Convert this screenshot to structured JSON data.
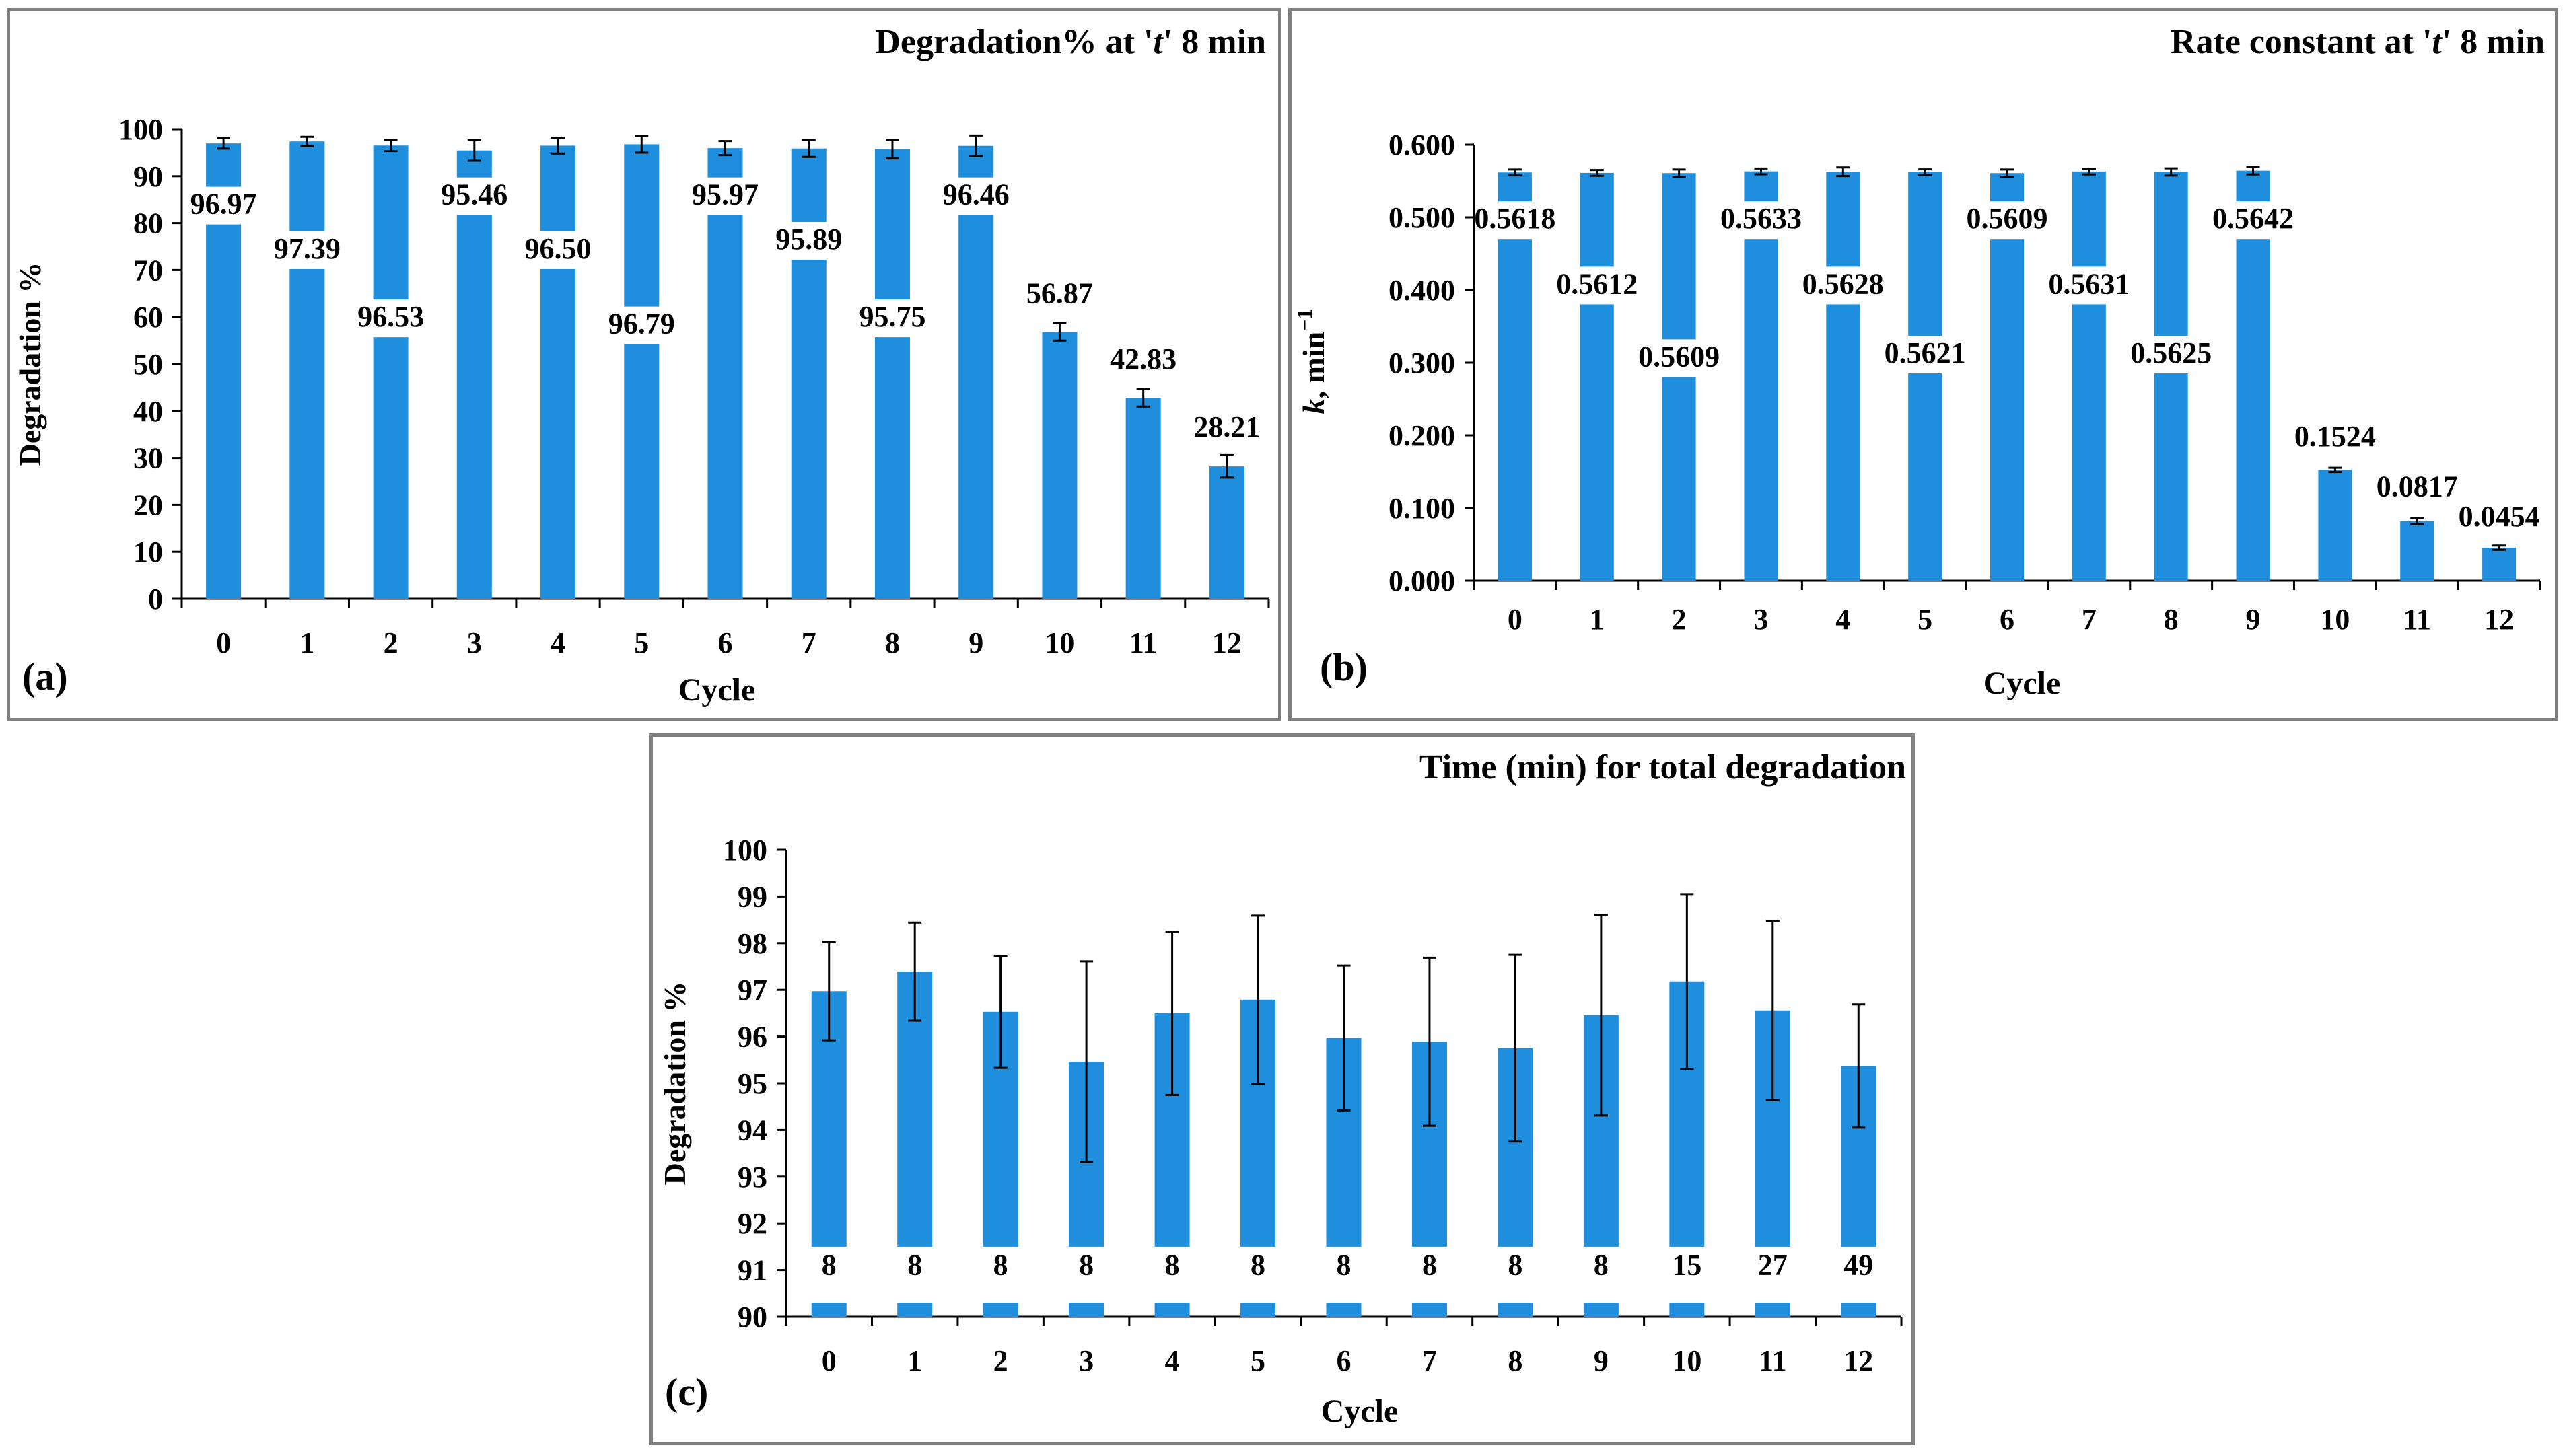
{
  "colors": {
    "bar": "#1f8edc",
    "axis": "#000000",
    "gridline": "none",
    "panel_label": "#ff0000",
    "frame": "#7f7f7f"
  },
  "chart_data": [
    {
      "id": "a",
      "type": "bar",
      "panel_label": "(a)",
      "title": "Degradation% at 't' 8 min",
      "title_parts": [
        "Degradation% at '",
        "t",
        "' 8 min"
      ],
      "xlabel": "Cycle",
      "ylabel": "Degradation %",
      "ylim": [
        0,
        100
      ],
      "yticks": [
        "0",
        "10",
        "20",
        "30",
        "40",
        "50",
        "60",
        "70",
        "80",
        "90",
        "100"
      ],
      "categories": [
        "0",
        "1",
        "2",
        "3",
        "4",
        "5",
        "6",
        "7",
        "8",
        "9",
        "10",
        "11",
        "12"
      ],
      "values": [
        96.97,
        97.39,
        96.53,
        95.46,
        96.5,
        96.79,
        95.97,
        95.89,
        95.75,
        96.46,
        56.87,
        42.83,
        28.21
      ],
      "error": [
        1.1,
        1.0,
        1.2,
        2.2,
        1.7,
        1.8,
        1.5,
        1.8,
        2.0,
        2.2,
        1.9,
        1.9,
        2.4
      ],
      "data_labels": [
        "96.97",
        "97.39",
        "96.53",
        "95.46",
        "96.50",
        "96.79",
        "95.97",
        "95.89",
        "95.75",
        "96.46",
        "56.87",
        "42.83",
        "28.21"
      ],
      "label_positions": [
        82,
        72.5,
        58,
        84,
        72.5,
        56.5,
        84,
        74.5,
        58,
        84,
        63,
        49,
        34.5
      ]
    },
    {
      "id": "b",
      "type": "bar",
      "panel_label": "(b)",
      "title": "Rate constant at 't' 8 min",
      "title_parts": [
        "Rate constant at '",
        "t",
        "' 8 min"
      ],
      "xlabel": "Cycle",
      "ylabel": "k, min⁻¹",
      "ylabel_parts": [
        "k",
        ", min",
        "−1"
      ],
      "ylim": [
        0,
        0.6
      ],
      "yticks": [
        "0.000",
        "0.100",
        "0.200",
        "0.300",
        "0.400",
        "0.500",
        "0.600"
      ],
      "categories": [
        "0",
        "1",
        "2",
        "3",
        "4",
        "5",
        "6",
        "7",
        "8",
        "9",
        "10",
        "11",
        "12"
      ],
      "values": [
        0.5618,
        0.5612,
        0.5609,
        0.5633,
        0.5628,
        0.5621,
        0.5609,
        0.5631,
        0.5625,
        0.5642,
        0.1524,
        0.0817,
        0.0454
      ],
      "error": [
        0.004,
        0.004,
        0.005,
        0.004,
        0.006,
        0.004,
        0.005,
        0.004,
        0.005,
        0.005,
        0.003,
        0.004,
        0.003
      ],
      "data_labels": [
        "0.5618",
        "0.5612",
        "0.5609",
        "0.5633",
        "0.5628",
        "0.5621",
        "0.5609",
        "0.5631",
        "0.5625",
        "0.5642",
        "0.1524",
        "0.0817",
        "0.0454"
      ],
      "label_positions": [
        0.485,
        0.395,
        0.295,
        0.485,
        0.395,
        0.3,
        0.485,
        0.395,
        0.3,
        0.485,
        0.185,
        0.116,
        0.075
      ]
    },
    {
      "id": "c",
      "type": "bar",
      "panel_label": "(c)",
      "title": "Time (min) for total degradation",
      "xlabel": "Cycle",
      "ylabel": "Degradation %",
      "ylim": [
        90,
        100
      ],
      "yticks": [
        "90",
        "91",
        "92",
        "93",
        "94",
        "95",
        "96",
        "97",
        "98",
        "99",
        "100"
      ],
      "categories": [
        "0",
        "1",
        "2",
        "3",
        "4",
        "5",
        "6",
        "7",
        "8",
        "9",
        "10",
        "11",
        "12"
      ],
      "values": [
        96.97,
        97.39,
        96.53,
        95.46,
        96.5,
        96.79,
        95.97,
        95.89,
        95.75,
        96.46,
        97.18,
        96.56,
        95.37
      ],
      "error": [
        1.05,
        1.05,
        1.2,
        2.15,
        1.75,
        1.8,
        1.55,
        1.8,
        2.0,
        2.15,
        1.87,
        1.92,
        1.32
      ],
      "data_labels": [
        "8",
        "8",
        "8",
        "8",
        "8",
        "8",
        "8",
        "8",
        "8",
        "8",
        "15",
        "27",
        "49"
      ],
      "label_band": [
        90.3,
        91.5
      ],
      "label_positions": [
        90.9,
        90.9,
        90.9,
        90.9,
        90.9,
        90.9,
        90.9,
        90.9,
        90.9,
        90.9,
        90.9,
        90.9,
        90.9
      ]
    }
  ]
}
